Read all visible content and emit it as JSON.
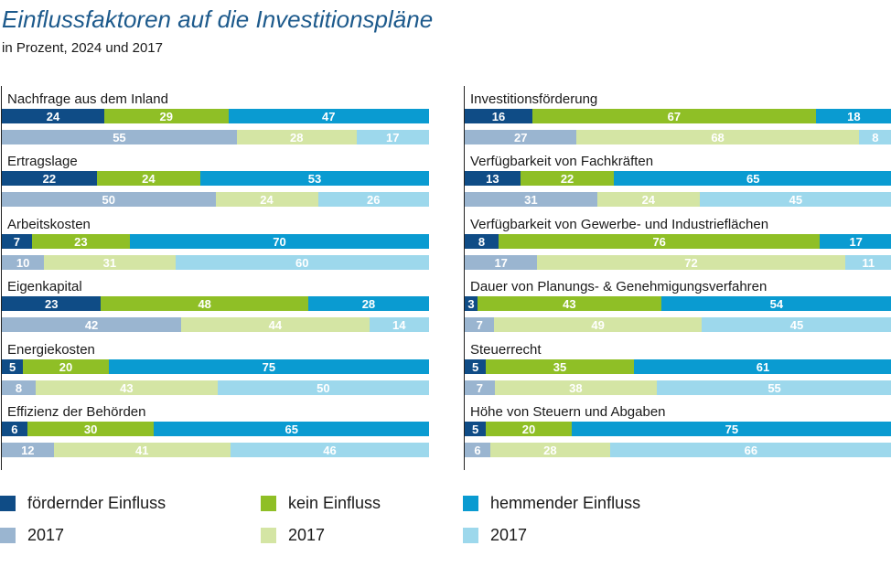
{
  "title": "Einflussfaktoren auf die Investitionspläne",
  "subtitle": "in Prozent, 2024 und 2017",
  "colors": {
    "foerdernd": "#0f4c86",
    "kein": "#8fbf26",
    "hemmend": "#0a9bd1",
    "foerdernd_2017": "#9ab5d0",
    "kein_2017": "#d4e5a4",
    "hemmend_2017": "#9dd8ec"
  },
  "chart_data": {
    "type": "bar",
    "stacked": true,
    "orientation": "horizontal",
    "title": "Einflussfaktoren auf die Investitionspläne",
    "subtitle": "in Prozent, 2024 und 2017",
    "xlim": [
      0,
      100
    ],
    "series_names": [
      "fördernder Einfluss",
      "kein Einfluss",
      "hemmender Einfluss"
    ],
    "panels": [
      [
        {
          "label": "Nachfrage aus dem Inland",
          "current": [
            24,
            29,
            47
          ],
          "prev": [
            55,
            28,
            17
          ]
        },
        {
          "label": "Ertragslage",
          "current": [
            22,
            24,
            53
          ],
          "prev": [
            50,
            24,
            26
          ]
        },
        {
          "label": "Arbeitskosten",
          "current": [
            7,
            23,
            70
          ],
          "prev": [
            10,
            31,
            60
          ]
        },
        {
          "label": "Eigenkapital",
          "current": [
            23,
            48,
            28
          ],
          "prev": [
            42,
            44,
            14
          ]
        },
        {
          "label": "Energiekosten",
          "current": [
            5,
            20,
            75
          ],
          "prev": [
            8,
            43,
            50
          ]
        },
        {
          "label": "Effizienz der Behörden",
          "current": [
            6,
            30,
            65
          ],
          "prev": [
            12,
            41,
            46
          ]
        }
      ],
      [
        {
          "label": "Investitionsförderung",
          "current": [
            16,
            67,
            18
          ],
          "prev": [
            27,
            68,
            8
          ]
        },
        {
          "label": "Verfügbarkeit von Fachkräften",
          "current": [
            13,
            22,
            65
          ],
          "prev": [
            31,
            24,
            45
          ]
        },
        {
          "label": "Verfügbarkeit von Gewerbe- und Industrieflächen",
          "current": [
            8,
            76,
            17
          ],
          "prev": [
            17,
            72,
            11
          ]
        },
        {
          "label": "Dauer von Planungs- & Genehmigungsverfahren",
          "current": [
            3,
            43,
            54
          ],
          "prev": [
            7,
            49,
            45
          ]
        },
        {
          "label": "Steuerrecht",
          "current": [
            5,
            35,
            61
          ],
          "prev": [
            7,
            38,
            55
          ]
        },
        {
          "label": "Höhe von Steuern und Abgaben",
          "current": [
            5,
            20,
            75
          ],
          "prev": [
            6,
            28,
            66
          ]
        }
      ]
    ]
  },
  "legend": [
    {
      "label": "fördernder Einfluss",
      "color": "#0f4c86"
    },
    {
      "label": "kein Einfluss",
      "color": "#8fbf26"
    },
    {
      "label": "hemmender Einfluss",
      "color": "#0a9bd1"
    },
    {
      "label": "2017",
      "color": "#9ab5d0"
    },
    {
      "label": "2017",
      "color": "#d4e5a4"
    },
    {
      "label": "2017",
      "color": "#9dd8ec"
    }
  ]
}
